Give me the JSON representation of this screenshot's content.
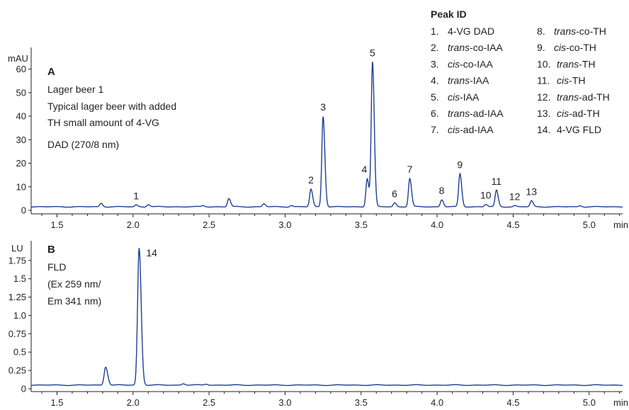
{
  "chart_data": [
    {
      "type": "line",
      "panel_letter": "A",
      "unit": "mAU",
      "x_unit": "min",
      "xlim": [
        1.33,
        5.22
      ],
      "ylim": [
        -2,
        68
      ],
      "x_ticks": [
        1.5,
        2.0,
        2.5,
        3.0,
        3.5,
        4.0,
        4.5,
        5.0
      ],
      "x_tick_labels": [
        "1.5",
        "2.0",
        "2.5",
        "3.0",
        "3.5",
        "4.0",
        "4.5",
        "5.0"
      ],
      "y_ticks": [
        0,
        10,
        20,
        30,
        40,
        50,
        60
      ],
      "y_tick_labels": [
        "0",
        "10",
        "20",
        "30",
        "40",
        "50",
        "60"
      ],
      "annotations": [
        "Lager beer 1",
        "Typical lager beer with added",
        "TH small amount of 4-VG",
        "DAD (270/8 nm)"
      ],
      "baseline": 1.5,
      "peaks": [
        {
          "label": "",
          "t": 1.79,
          "h": 1.5
        },
        {
          "label": "1",
          "t": 2.02,
          "h": 0.8
        },
        {
          "label": "",
          "t": 2.1,
          "h": 1.0
        },
        {
          "label": "",
          "t": 2.46,
          "h": 0.5
        },
        {
          "label": "",
          "t": 2.63,
          "h": 3.5
        },
        {
          "label": "",
          "t": 2.86,
          "h": 1.3
        },
        {
          "label": "",
          "t": 3.04,
          "h": 0.6
        },
        {
          "label": "2",
          "t": 3.17,
          "h": 7.5
        },
        {
          "label": "3",
          "t": 3.25,
          "h": 38.5
        },
        {
          "label": "4",
          "t": 3.54,
          "h": 12.0
        },
        {
          "label": "5",
          "t": 3.575,
          "h": 61.5
        },
        {
          "label": "6",
          "t": 3.72,
          "h": 1.7
        },
        {
          "label": "7",
          "t": 3.82,
          "h": 12.0
        },
        {
          "label": "8",
          "t": 4.03,
          "h": 3.0
        },
        {
          "label": "9",
          "t": 4.15,
          "h": 14.0
        },
        {
          "label": "10",
          "t": 4.32,
          "h": 1.0
        },
        {
          "label": "11",
          "t": 4.39,
          "h": 7.0
        },
        {
          "label": "12",
          "t": 4.51,
          "h": 0.5
        },
        {
          "label": "13",
          "t": 4.62,
          "h": 2.5
        },
        {
          "label": "",
          "t": 4.94,
          "h": 0.5
        }
      ]
    },
    {
      "type": "line",
      "panel_letter": "B",
      "unit": "LU",
      "x_unit": "min",
      "xlim": [
        1.33,
        5.22
      ],
      "ylim": [
        -0.05,
        1.98
      ],
      "x_ticks": [
        1.5,
        2.0,
        2.5,
        3.0,
        3.5,
        4.0,
        4.5,
        5.0
      ],
      "x_tick_labels": [
        "1.5",
        "2.0",
        "2.5",
        "3.0",
        "3.5",
        "4.0",
        "4.5",
        "5.0"
      ],
      "y_ticks": [
        0,
        0.25,
        0.5,
        0.75,
        1.0,
        1.25,
        1.5,
        1.75
      ],
      "y_tick_labels": [
        "0",
        "0.25",
        "0.5",
        "0.75",
        "1.0",
        "1.25",
        "1.5",
        "1.75"
      ],
      "annotations": [
        "FLD",
        "(Ex 259 nm/",
        "Em 341 nm)"
      ],
      "baseline": 0.05,
      "peaks": [
        {
          "label": "",
          "t": 1.82,
          "h": 0.25
        },
        {
          "label": "14",
          "t": 2.04,
          "h": 1.87
        },
        {
          "label": "",
          "t": 2.33,
          "h": 0.02
        },
        {
          "label": "",
          "t": 2.48,
          "h": 0.015
        }
      ]
    }
  ],
  "legend": {
    "title": "Peak ID",
    "entries": [
      {
        "num": "1.",
        "parts": [
          {
            "t": "4-VG DAD",
            "i": false
          }
        ]
      },
      {
        "num": "2.",
        "parts": [
          {
            "t": "trans",
            "i": true
          },
          {
            "t": "-co-IAA",
            "i": false
          }
        ]
      },
      {
        "num": "3.",
        "parts": [
          {
            "t": "cis",
            "i": true
          },
          {
            "t": "-co-IAA",
            "i": false
          }
        ]
      },
      {
        "num": "4.",
        "parts": [
          {
            "t": "trans",
            "i": true
          },
          {
            "t": "-IAA",
            "i": false
          }
        ]
      },
      {
        "num": "5.",
        "parts": [
          {
            "t": "cis",
            "i": true
          },
          {
            "t": "-IAA",
            "i": false
          }
        ]
      },
      {
        "num": "6.",
        "parts": [
          {
            "t": "trans",
            "i": true
          },
          {
            "t": "-ad-IAA",
            "i": false
          }
        ]
      },
      {
        "num": "7.",
        "parts": [
          {
            "t": "cis",
            "i": true
          },
          {
            "t": "-ad-IAA",
            "i": false
          }
        ]
      },
      {
        "num": "8.",
        "parts": [
          {
            "t": "trans",
            "i": true
          },
          {
            "t": "-co-TH",
            "i": false
          }
        ]
      },
      {
        "num": "9.",
        "parts": [
          {
            "t": "cis",
            "i": true
          },
          {
            "t": "-co-TH",
            "i": false
          }
        ]
      },
      {
        "num": "10.",
        "parts": [
          {
            "t": "trans",
            "i": true
          },
          {
            "t": "-TH",
            "i": false
          }
        ]
      },
      {
        "num": "11.",
        "parts": [
          {
            "t": "cis",
            "i": true
          },
          {
            "t": "-TH",
            "i": false
          }
        ]
      },
      {
        "num": "12.",
        "parts": [
          {
            "t": "trans",
            "i": true
          },
          {
            "t": "-ad-TH",
            "i": false
          }
        ]
      },
      {
        "num": "13.",
        "parts": [
          {
            "t": "cis",
            "i": true
          },
          {
            "t": "-ad-TH",
            "i": false
          }
        ]
      },
      {
        "num": "14.",
        "parts": [
          {
            "t": "4-VG FLD",
            "i": false
          }
        ]
      }
    ]
  },
  "colors": {
    "trace": "#1f3f95",
    "axis": "#231f20"
  }
}
